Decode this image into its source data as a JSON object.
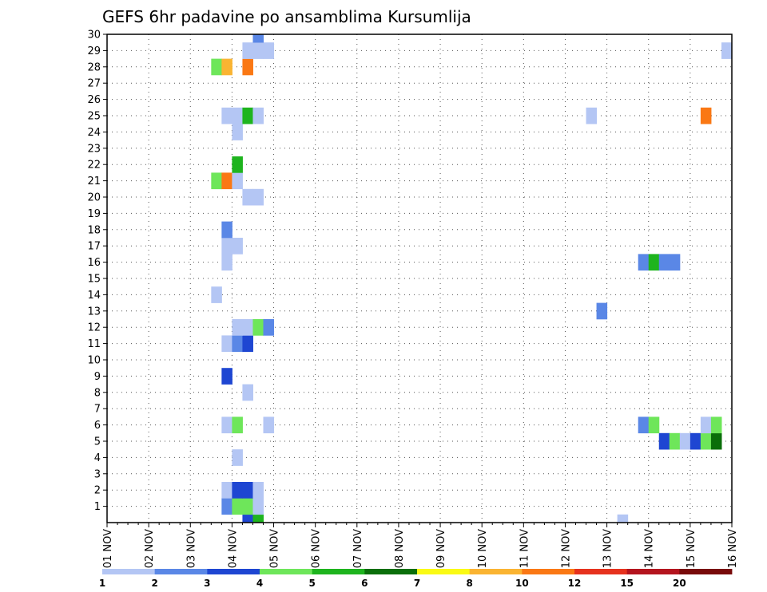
{
  "chart_data": {
    "type": "heatmap",
    "title": "GEFS 6hr padavine po ansamblima Kursumlija",
    "xlabel": "",
    "ylabel": "",
    "x_tick_labels": [
      "01 NOV",
      "02 NOV",
      "03 NOV",
      "04 NOV",
      "05 NOV",
      "06 NOV",
      "07 NOV",
      "08 NOV",
      "09 NOV",
      "10 NOV",
      "11 NOV",
      "12 NOV",
      "13 NOV",
      "14 NOV",
      "15 NOV",
      "16 NOV"
    ],
    "y_tick_labels": [
      1,
      2,
      3,
      4,
      5,
      6,
      7,
      8,
      9,
      10,
      11,
      12,
      13,
      14,
      15,
      16,
      17,
      18,
      19,
      20,
      21,
      22,
      23,
      24,
      25,
      26,
      27,
      28,
      29,
      30
    ],
    "x_range_days": [
      1,
      16
    ],
    "y_range": [
      0,
      30
    ],
    "steps_per_day": 4,
    "grid": true,
    "colorbar": {
      "labels": [
        "1",
        "2",
        "3",
        "4",
        "5",
        "6",
        "7",
        "8",
        "10",
        "12",
        "15",
        "20"
      ],
      "colors": [
        "#b4c6f4",
        "#5a87e6",
        "#1e46d2",
        "#6ee65a",
        "#1eb41e",
        "#0a6e0a",
        "#fafa14",
        "#fab432",
        "#fa7814",
        "#e6321e",
        "#b4141e",
        "#780a0a"
      ]
    },
    "cells_note": "each cell: [member, forecast step index from 01 NOV 00 (6h steps), color class index 1-12]",
    "cells": [
      [
        0,
        13,
        3
      ],
      [
        0,
        14,
        5
      ],
      [
        1,
        11,
        2
      ],
      [
        1,
        12,
        4
      ],
      [
        1,
        13,
        4
      ],
      [
        1,
        14,
        1
      ],
      [
        2,
        11,
        1
      ],
      [
        2,
        12,
        3
      ],
      [
        2,
        13,
        3
      ],
      [
        2,
        14,
        1
      ],
      [
        4,
        12,
        1
      ],
      [
        6,
        11,
        1
      ],
      [
        6,
        12,
        4
      ],
      [
        6,
        15,
        1
      ],
      [
        8,
        13,
        1
      ],
      [
        9,
        11,
        3
      ],
      [
        11,
        11,
        1
      ],
      [
        11,
        12,
        2
      ],
      [
        11,
        13,
        3
      ],
      [
        12,
        12,
        1
      ],
      [
        12,
        13,
        1
      ],
      [
        12,
        14,
        4
      ],
      [
        12,
        15,
        2
      ],
      [
        14,
        10,
        1
      ],
      [
        16,
        11,
        1
      ],
      [
        17,
        11,
        1
      ],
      [
        17,
        12,
        1
      ],
      [
        18,
        11,
        2
      ],
      [
        20,
        13,
        1
      ],
      [
        20,
        14,
        1
      ],
      [
        21,
        10,
        4
      ],
      [
        21,
        11,
        9
      ],
      [
        21,
        12,
        1
      ],
      [
        22,
        12,
        5
      ],
      [
        24,
        12,
        1
      ],
      [
        25,
        11,
        1
      ],
      [
        25,
        12,
        1
      ],
      [
        25,
        13,
        5
      ],
      [
        25,
        14,
        1
      ],
      [
        28,
        10,
        4
      ],
      [
        28,
        11,
        8
      ],
      [
        28,
        13,
        9
      ],
      [
        29,
        13,
        1
      ],
      [
        29,
        14,
        1
      ],
      [
        29,
        15,
        1
      ],
      [
        30,
        14,
        2
      ],
      [
        0,
        49,
        1
      ],
      [
        5,
        53,
        3
      ],
      [
        5,
        54,
        4
      ],
      [
        5,
        55,
        1
      ],
      [
        5,
        56,
        3
      ],
      [
        5,
        57,
        4
      ],
      [
        5,
        58,
        6
      ],
      [
        6,
        51,
        2
      ],
      [
        6,
        52,
        4
      ],
      [
        6,
        57,
        1
      ],
      [
        6,
        58,
        4
      ],
      [
        13,
        47,
        2
      ],
      [
        16,
        51,
        2
      ],
      [
        16,
        52,
        5
      ],
      [
        16,
        53,
        2
      ],
      [
        16,
        54,
        2
      ],
      [
        25,
        46,
        1
      ],
      [
        25,
        57,
        9
      ],
      [
        29,
        59,
        1
      ]
    ]
  }
}
